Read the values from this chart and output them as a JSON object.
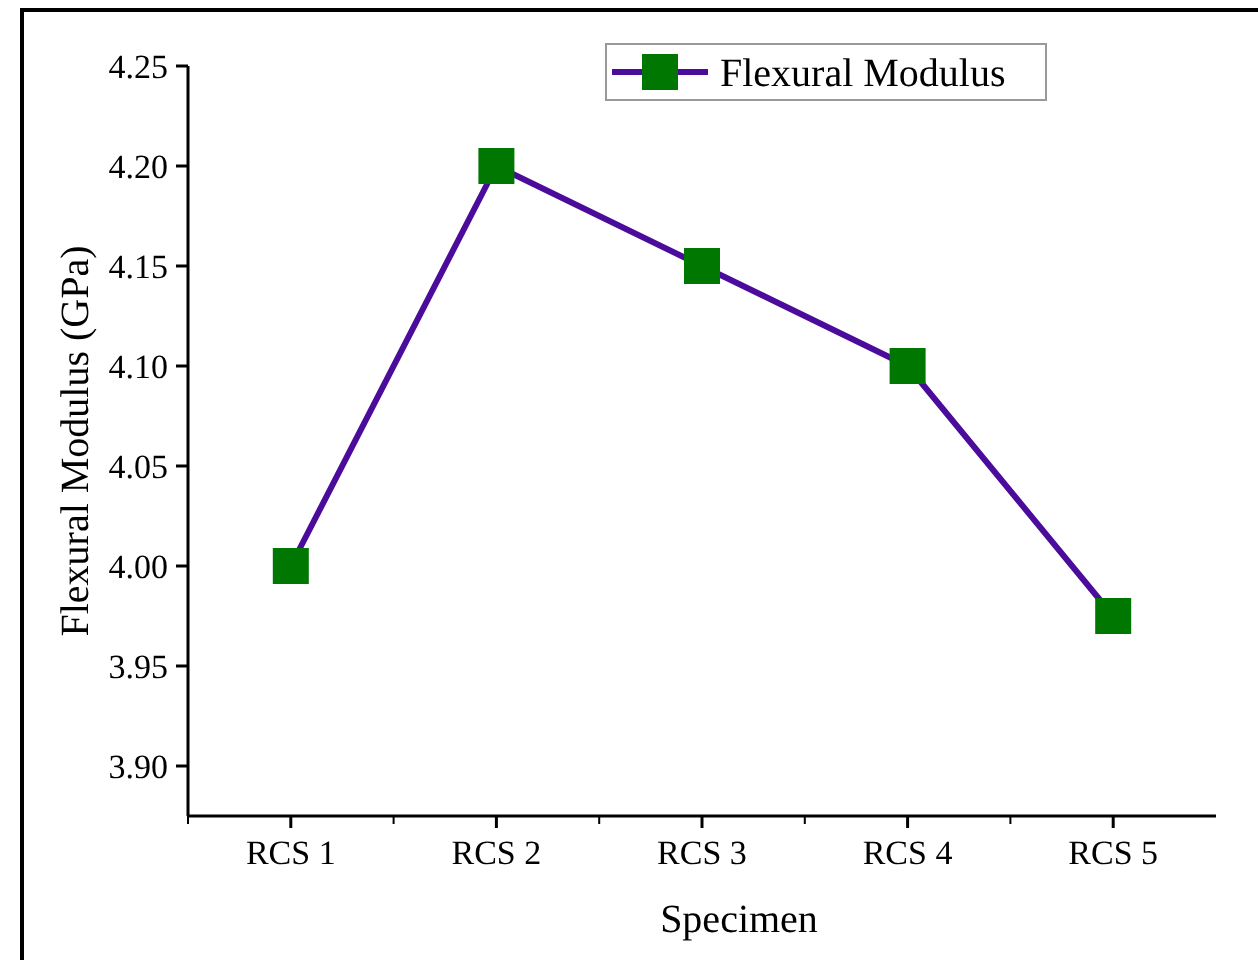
{
  "chart_data": {
    "type": "line",
    "xlabel": "Specimen",
    "ylabel": "Flexural Modulus (GPa)",
    "categories": [
      "RCS 1",
      "RCS 2",
      "RCS 3",
      "RCS 4",
      "RCS 5"
    ],
    "series": [
      {
        "name": "Flexural Modulus",
        "color": "#4b0c9c",
        "colors": [
          "#007700",
          "#007700",
          "#007700",
          "#007700",
          "#007700"
        ],
        "values": [
          4.0,
          4.2,
          4.15,
          4.1,
          3.975
        ]
      }
    ],
    "ylim": [
      3.875,
      4.25
    ],
    "yticks": [
      {
        "value": 3.9,
        "label": "3.90"
      },
      {
        "value": 3.95,
        "label": "3.95"
      },
      {
        "value": 4.0,
        "label": "4.00"
      },
      {
        "value": 4.05,
        "label": "4.05"
      },
      {
        "value": 4.1,
        "label": "4.10"
      },
      {
        "value": 4.15,
        "label": "4.15"
      },
      {
        "value": 4.2,
        "label": "4.20"
      },
      {
        "value": 4.25,
        "label": "4.25"
      }
    ],
    "marker": "square",
    "line_style": "solid",
    "legend": "top right",
    "grid": false
  }
}
